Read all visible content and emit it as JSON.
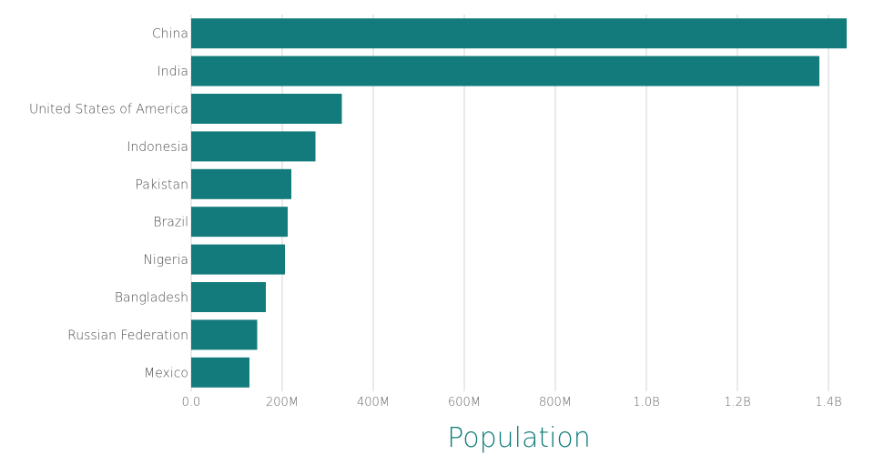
{
  "colors": {
    "bar": "#137b7b",
    "grid": "#d4d4d4",
    "axis_title": "#137b7b"
  },
  "chart_data": {
    "type": "bar",
    "orientation": "horizontal",
    "title": "",
    "xlabel": "Population",
    "ylabel": "",
    "grid": true,
    "xlim": [
      0,
      1440000000
    ],
    "x_ticks": [
      0,
      200000000,
      400000000,
      600000000,
      800000000,
      1000000000,
      1200000000,
      1400000000
    ],
    "x_tick_labels": [
      "0.0",
      "200M",
      "400M",
      "600M",
      "800M",
      "1.0B",
      "1.2B",
      "1.4B"
    ],
    "categories": [
      "China",
      "India",
      "United States of America",
      "Indonesia",
      "Pakistan",
      "Brazil",
      "Nigeria",
      "Bangladesh",
      "Russian Federation",
      "Mexico"
    ],
    "values": [
      1440000000,
      1380000000,
      331000000,
      273000000,
      220000000,
      212000000,
      206000000,
      164000000,
      145000000,
      128000000
    ]
  }
}
